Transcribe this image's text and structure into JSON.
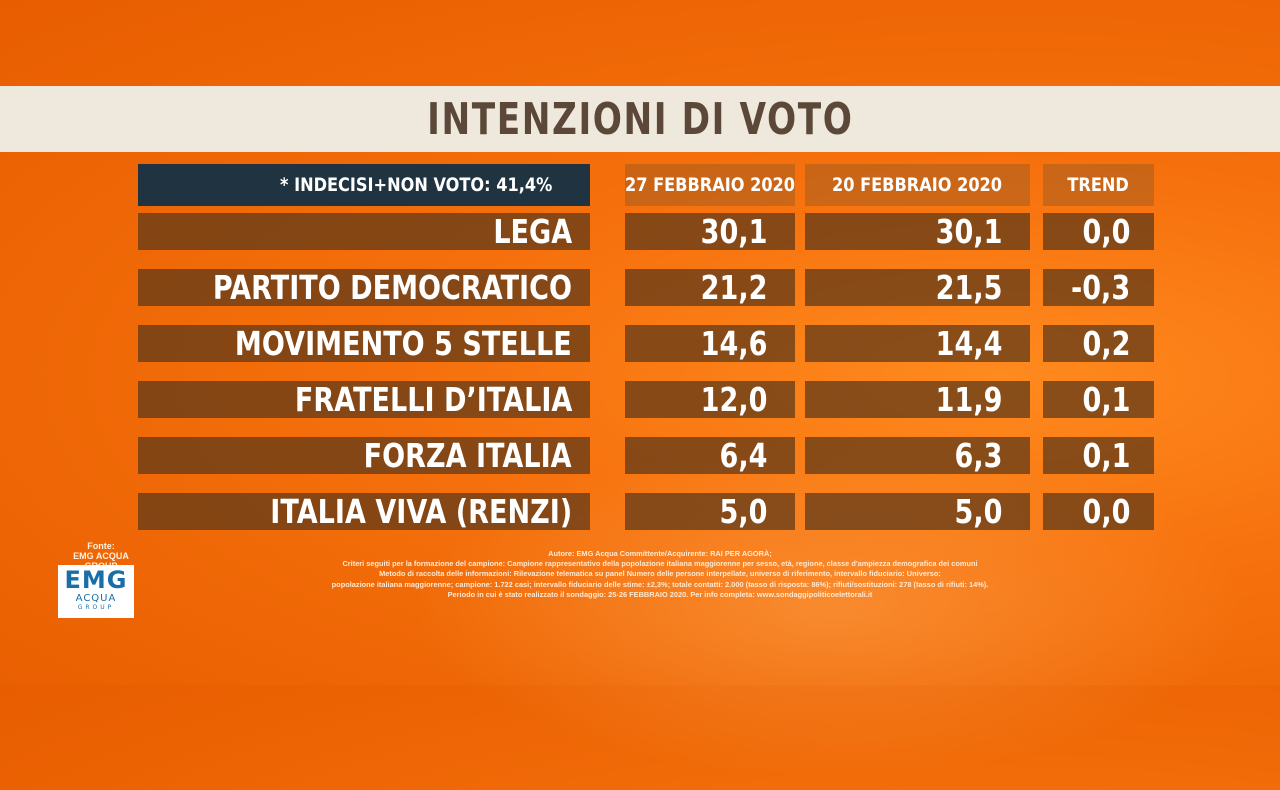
{
  "title": "INTENZIONI DI VOTO",
  "chart_data": {
    "type": "table",
    "header_note": "* INDECISI+NON VOTO: 41,4%",
    "columns": [
      "27 FEBBRAIO 2020",
      "20 FEBBRAIO 2020",
      "TREND"
    ],
    "rows": [
      {
        "party": "LEGA",
        "values": [
          "30,1",
          "30,1",
          "0,0"
        ]
      },
      {
        "party": "PARTITO DEMOCRATICO",
        "values": [
          "21,2",
          "21,5",
          "-0,3"
        ]
      },
      {
        "party": "MOVIMENTO 5 STELLE",
        "values": [
          "14,6",
          "14,4",
          "0,2"
        ]
      },
      {
        "party": "FRATELLI D’ITALIA",
        "values": [
          "12,0",
          "11,9",
          "0,1"
        ]
      },
      {
        "party": "FORZA ITALIA",
        "values": [
          "6,4",
          "6,3",
          "0,1"
        ]
      },
      {
        "party": "ITALIA VIVA (RENZI)",
        "values": [
          "5,0",
          "5,0",
          "0,0"
        ]
      }
    ]
  },
  "source": {
    "label": "Fonte:",
    "name": "EMG ACQUA GROUP",
    "logo_main": "EMG",
    "logo_sub": "ACQUA",
    "logo_group": "GROUP"
  },
  "credits": [
    "Autore: EMG Acqua Committente/Acquirente: RAI PER AGORÀ;",
    "Criteri seguiti per la formazione del campione: Campione rappresentativo della popolazione italiana maggiorenne per sesso, età, regione, classe d'ampiezza demografica dei comuni",
    "Metodo di raccolta delle informazioni: Rilevazione telematica su panel Numero delle persone interpellate, universo di riferimento, intervallo fiduciario: Universo:",
    "popolazione italiana maggiorenne; campione: 1.722 casi; intervallo fiduciario delle stime: ±2,3%; totale contatti: 2.000 (tasso di risposta: 86%); rifiuti/sostituzioni: 278 (tasso di rifiuti: 14%).",
    "Periodo in cui è stato realizzato il sondaggio: 25-26 FEBBRAIO 2020. Per info completa: www.sondaggipoliticoelettorali.it"
  ]
}
